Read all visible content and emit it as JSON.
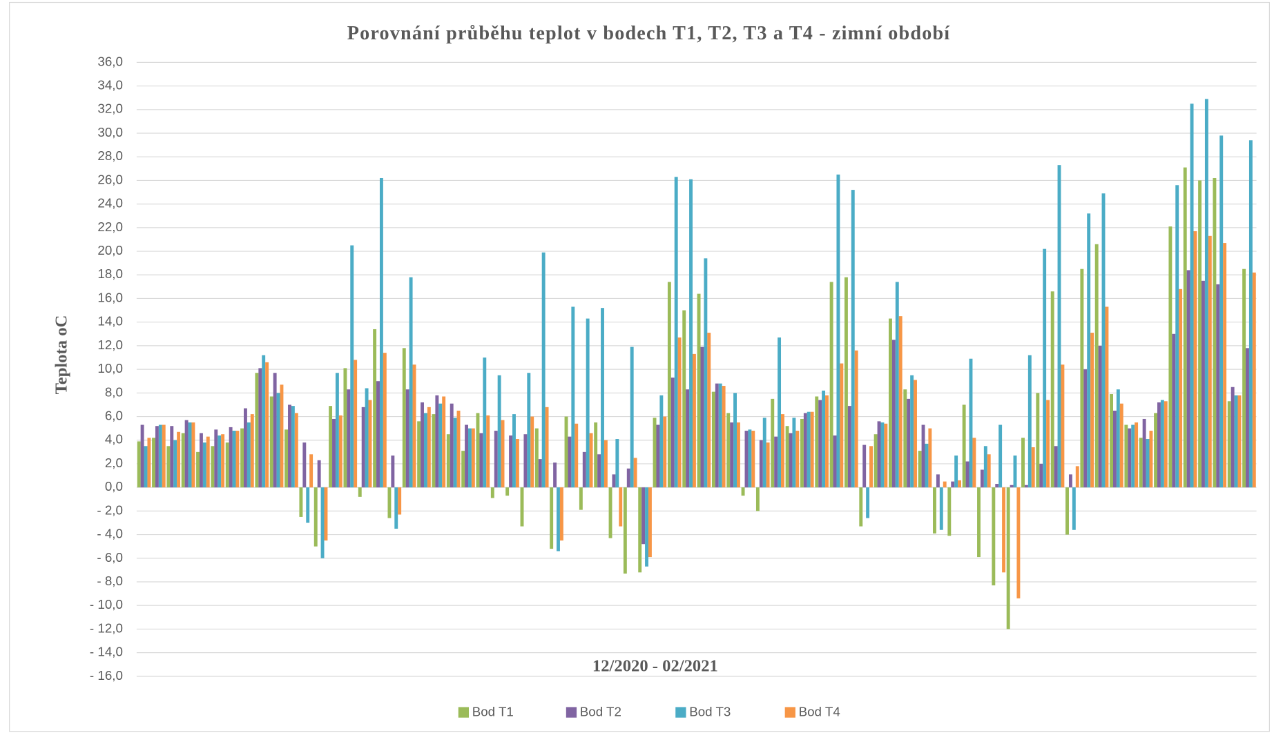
{
  "chart_data": {
    "type": "bar",
    "title": "Porovnání průběhu teplot v bodech T1, T2, T3 a T4 - zimní období",
    "y_label": "Teplota oC",
    "x_label": "12/2020 - 02/2021",
    "ylim": [
      -16,
      36
    ],
    "yticks": [
      {
        "value": 36,
        "label": "36,0"
      },
      {
        "value": 34,
        "label": "34,0"
      },
      {
        "value": 32,
        "label": "32,0"
      },
      {
        "value": 30,
        "label": "30,0"
      },
      {
        "value": 28,
        "label": "28,0"
      },
      {
        "value": 26,
        "label": "26,0"
      },
      {
        "value": 24,
        "label": "24,0"
      },
      {
        "value": 22,
        "label": "22,0"
      },
      {
        "value": 20,
        "label": "20,0"
      },
      {
        "value": 18,
        "label": "18,0"
      },
      {
        "value": 16,
        "label": "16,0"
      },
      {
        "value": 14,
        "label": "14,0"
      },
      {
        "value": 12,
        "label": "12,0"
      },
      {
        "value": 10,
        "label": "10,0"
      },
      {
        "value": 8,
        "label": "8,0"
      },
      {
        "value": 6,
        "label": "6,0"
      },
      {
        "value": 4,
        "label": "4,0"
      },
      {
        "value": 2,
        "label": "2,0"
      },
      {
        "value": 0,
        "label": "0,0"
      },
      {
        "value": -2,
        "label": "- 2,0"
      },
      {
        "value": -4,
        "label": "- 4,0"
      },
      {
        "value": -6,
        "label": "- 6,0"
      },
      {
        "value": -8,
        "label": "- 8,0"
      },
      {
        "value": -10,
        "label": "- 10,0"
      },
      {
        "value": -12,
        "label": "- 12,0"
      },
      {
        "value": -14,
        "label": "- 14,0"
      },
      {
        "value": -16,
        "label": "- 16,0"
      }
    ],
    "grid": true,
    "legend": "bottom",
    "series": [
      {
        "name": "Bod T1",
        "color": "#9bbb59",
        "values": [
          3.9,
          4.2,
          3.5,
          4.6,
          3.0,
          3.5,
          3.8,
          5.0,
          9.7,
          7.7,
          4.9,
          -2.5,
          -5.0,
          6.9,
          10.1,
          -0.8,
          13.4,
          -2.6,
          11.8,
          5.6,
          6.2,
          4.5,
          3.1,
          6.3,
          -0.9,
          -0.7,
          -3.3,
          5.0,
          -5.2,
          6.0,
          -1.9,
          5.5,
          -4.3,
          -7.3,
          -7.2,
          5.9,
          17.4,
          15.0,
          16.4,
          8.1,
          6.3,
          -0.7,
          -2.0,
          7.5,
          5.2,
          5.8,
          7.7,
          17.4,
          17.8,
          -3.3,
          4.5,
          14.3,
          8.3,
          3.1,
          -3.9,
          -4.1,
          7.0,
          -5.9,
          -8.3,
          -12.0,
          4.2,
          8.0,
          16.6,
          -4.0,
          18.5,
          20.6,
          7.9,
          5.3,
          4.2,
          6.3,
          22.1,
          27.1,
          26.0,
          26.2,
          7.3,
          18.5
        ]
      },
      {
        "name": "Bod T2",
        "color": "#8064a2",
        "values": [
          5.3,
          5.2,
          5.2,
          5.7,
          4.6,
          4.9,
          5.1,
          6.7,
          10.1,
          9.7,
          7.0,
          3.8,
          2.3,
          5.8,
          8.3,
          6.8,
          9.0,
          2.7,
          8.3,
          7.2,
          7.8,
          7.1,
          5.3,
          4.6,
          4.8,
          4.4,
          4.5,
          2.4,
          2.1,
          4.3,
          3.0,
          2.8,
          1.1,
          1.6,
          -4.8,
          5.3,
          9.3,
          8.3,
          11.9,
          8.8,
          5.5,
          4.8,
          4.0,
          4.3,
          4.6,
          6.3,
          7.4,
          4.4,
          6.9,
          3.6,
          5.6,
          12.5,
          7.5,
          5.3,
          1.1,
          0.5,
          2.2,
          1.5,
          0.3,
          0.2,
          0.2,
          2.0,
          3.5,
          1.1,
          10.0,
          12.0,
          6.5,
          5.0,
          5.8,
          7.2,
          13.0,
          18.4,
          17.5,
          17.2,
          8.5,
          11.8
        ]
      },
      {
        "name": "Bod T3",
        "color": "#4bacc6",
        "values": [
          3.5,
          5.3,
          4.0,
          5.5,
          3.8,
          4.4,
          4.8,
          5.5,
          11.2,
          8.0,
          6.9,
          -3.0,
          -6.0,
          9.7,
          20.5,
          8.4,
          26.2,
          -3.5,
          17.8,
          6.3,
          7.1,
          5.9,
          5.0,
          11.0,
          9.5,
          6.2,
          9.7,
          19.9,
          -5.4,
          15.3,
          14.3,
          15.2,
          4.1,
          11.9,
          -6.7,
          7.8,
          26.3,
          26.1,
          19.4,
          8.8,
          8.0,
          4.9,
          5.9,
          12.7,
          5.9,
          6.4,
          8.2,
          26.5,
          25.2,
          -2.6,
          5.5,
          17.4,
          9.5,
          3.7,
          -3.6,
          2.7,
          10.9,
          3.5,
          5.3,
          2.7,
          11.2,
          20.2,
          27.3,
          -3.6,
          23.2,
          24.9,
          8.3,
          5.3,
          4.1,
          7.4,
          25.6,
          32.5,
          32.9,
          29.8,
          7.8,
          29.4
        ]
      },
      {
        "name": "Bod T4",
        "color": "#f79646",
        "values": [
          4.2,
          5.3,
          4.7,
          5.5,
          4.3,
          4.5,
          4.8,
          6.2,
          10.6,
          8.7,
          6.3,
          2.8,
          -4.5,
          6.1,
          10.8,
          7.4,
          11.4,
          -2.3,
          10.4,
          6.8,
          7.7,
          6.5,
          5.0,
          6.1,
          5.7,
          4.1,
          6.0,
          6.8,
          -4.5,
          5.4,
          4.6,
          4.0,
          -3.3,
          2.5,
          -5.9,
          6.0,
          12.7,
          11.3,
          13.1,
          8.6,
          5.5,
          4.8,
          3.8,
          6.2,
          4.8,
          6.4,
          7.8,
          10.5,
          11.6,
          3.5,
          5.4,
          14.5,
          9.1,
          5.0,
          0.5,
          0.6,
          4.2,
          2.8,
          -7.2,
          -9.4,
          3.4,
          7.4,
          10.4,
          1.8,
          13.1,
          15.3,
          7.1,
          5.5,
          4.8,
          7.3,
          16.8,
          21.7,
          21.3,
          20.7,
          7.8,
          18.2
        ]
      }
    ]
  }
}
